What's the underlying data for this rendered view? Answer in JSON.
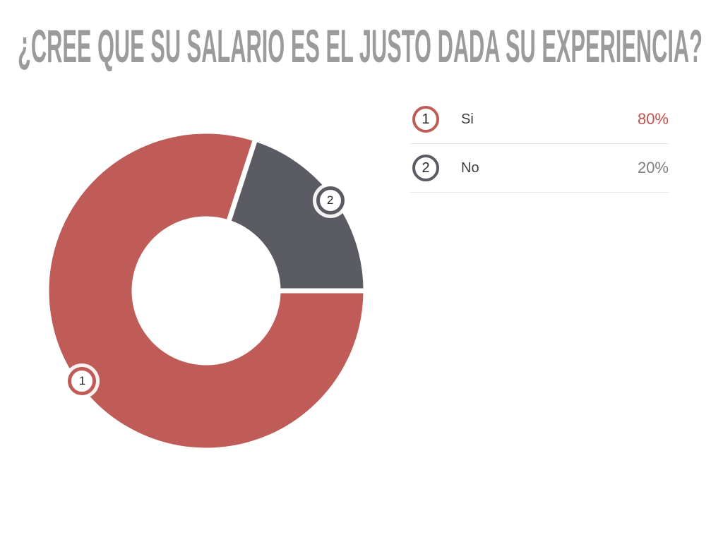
{
  "title": {
    "text": "¿CREE QUE SU SALARIO ES EL JUSTO DADA SU EXPERIENCIA?",
    "color": "#9b9b9b"
  },
  "chart_data": {
    "type": "pie",
    "subtype": "donut",
    "title": "¿CREE QUE SU SALARIO ES EL JUSTO DADA SU EXPERIENCIA?",
    "categories": [
      "Si",
      "No"
    ],
    "values": [
      80,
      20
    ],
    "value_labels": [
      "80%",
      "20%"
    ],
    "slice_numbers": [
      "1",
      "2"
    ],
    "colors": [
      "#c05c57",
      "#5b5b63"
    ],
    "gap_color": "#ffffff",
    "inner_radius_ratio": 0.46,
    "start_angle_deg": 0,
    "direction": "ccw",
    "legend_position": "right",
    "grid": false
  },
  "legend": {
    "rows": [
      {
        "index": "1",
        "label": "Si",
        "value": "80%",
        "ring_color": "#c05c57",
        "value_color": "#c2514d"
      },
      {
        "index": "2",
        "label": "No",
        "value": "20%",
        "ring_color": "#5b5b63",
        "value_color": "#7e7e83"
      }
    ]
  }
}
